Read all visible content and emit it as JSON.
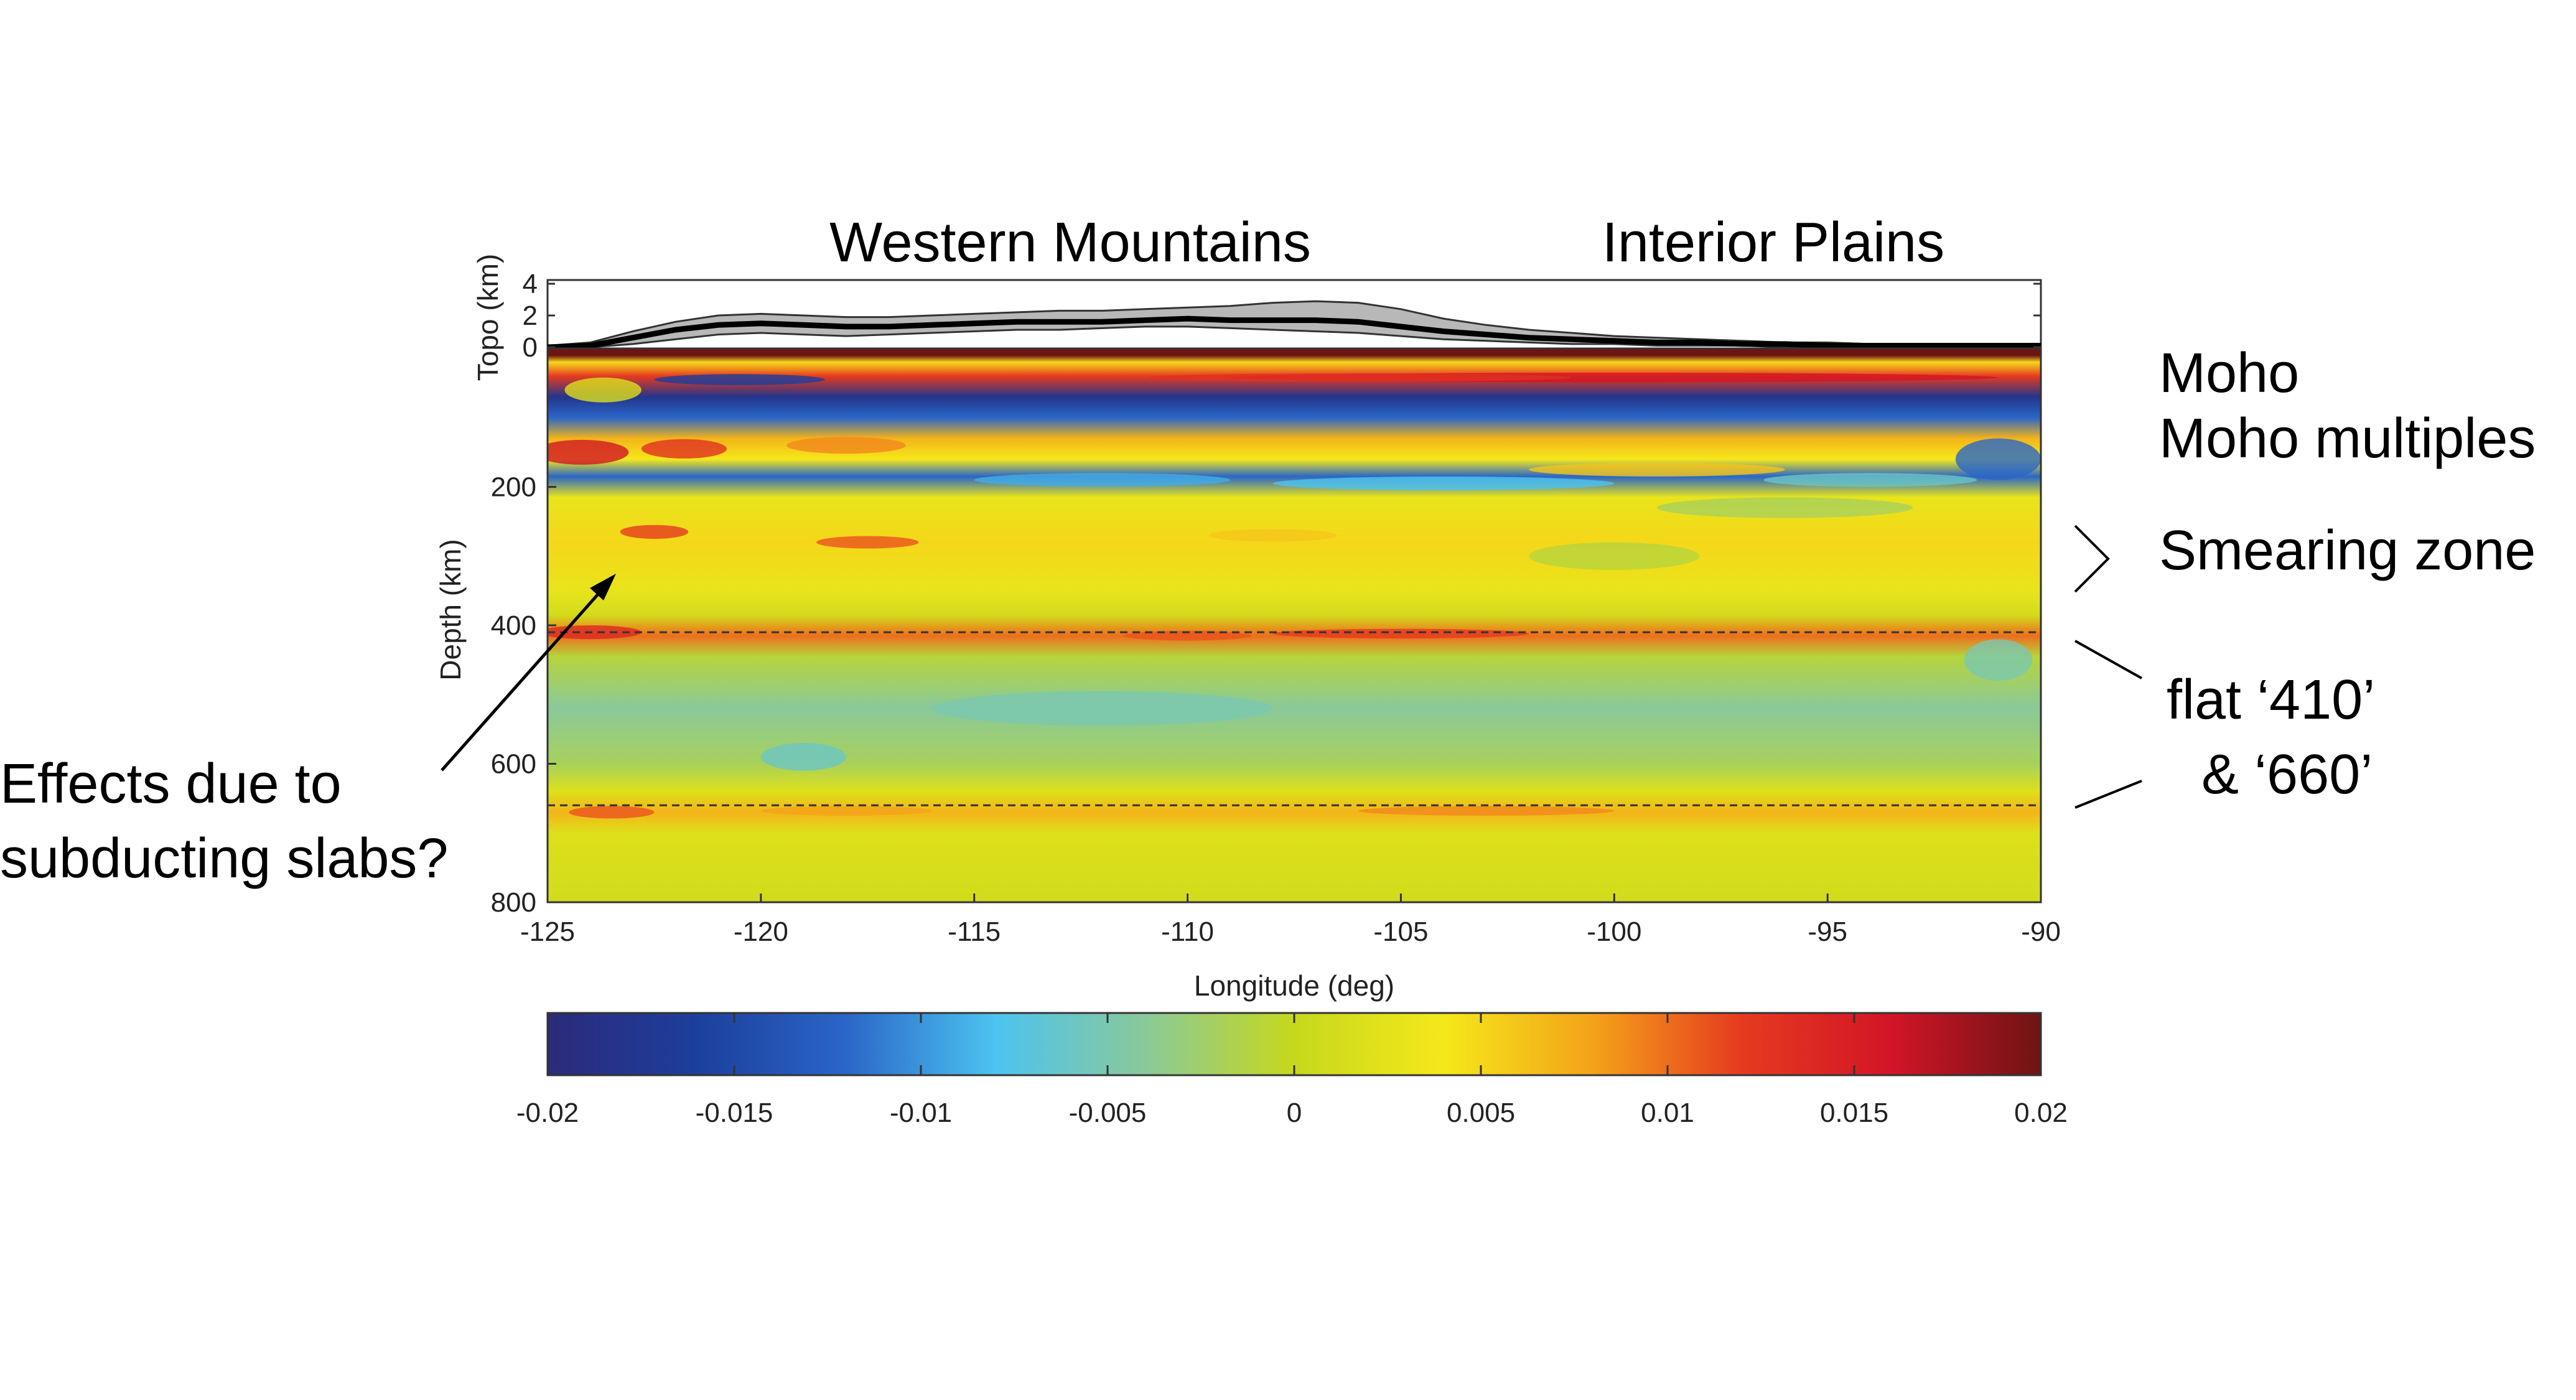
{
  "chart_data": {
    "type": "heatmap",
    "region_labels": [
      "Western Mountains",
      "Interior Plains"
    ],
    "topo_panel": {
      "ylabel": "Topo (km)",
      "yticks": [
        0,
        2,
        4
      ],
      "ylim": [
        0,
        4
      ],
      "mean_profile": [
        [
          -125,
          0.0
        ],
        [
          -124,
          0.1
        ],
        [
          -123,
          0.6
        ],
        [
          -122,
          1.1
        ],
        [
          -121,
          1.4
        ],
        [
          -120,
          1.5
        ],
        [
          -119,
          1.4
        ],
        [
          -118,
          1.3
        ],
        [
          -117,
          1.3
        ],
        [
          -116,
          1.4
        ],
        [
          -115,
          1.5
        ],
        [
          -114,
          1.6
        ],
        [
          -113,
          1.6
        ],
        [
          -112,
          1.6
        ],
        [
          -111,
          1.7
        ],
        [
          -110,
          1.8
        ],
        [
          -109,
          1.7
        ],
        [
          -108,
          1.7
        ],
        [
          -107,
          1.7
        ],
        [
          -106,
          1.6
        ],
        [
          -105,
          1.3
        ],
        [
          -104,
          1.0
        ],
        [
          -103,
          0.8
        ],
        [
          -102,
          0.6
        ],
        [
          -101,
          0.5
        ],
        [
          -100,
          0.4
        ],
        [
          -99,
          0.3
        ],
        [
          -98,
          0.3
        ],
        [
          -97,
          0.2
        ],
        [
          -96,
          0.2
        ],
        [
          -95,
          0.1
        ],
        [
          -94,
          0.1
        ],
        [
          -93,
          0.1
        ],
        [
          -92,
          0.1
        ],
        [
          -91,
          0.1
        ],
        [
          -90,
          0.1
        ]
      ],
      "envelope_max": [
        [
          -125,
          0.1
        ],
        [
          -124,
          0.3
        ],
        [
          -123,
          1.0
        ],
        [
          -122,
          1.6
        ],
        [
          -121,
          2.0
        ],
        [
          -120,
          2.1
        ],
        [
          -119,
          2.0
        ],
        [
          -118,
          1.9
        ],
        [
          -117,
          1.9
        ],
        [
          -116,
          2.0
        ],
        [
          -115,
          2.1
        ],
        [
          -114,
          2.2
        ],
        [
          -113,
          2.3
        ],
        [
          -112,
          2.3
        ],
        [
          -111,
          2.4
        ],
        [
          -110,
          2.5
        ],
        [
          -109,
          2.6
        ],
        [
          -108,
          2.8
        ],
        [
          -107,
          2.9
        ],
        [
          -106,
          2.8
        ],
        [
          -105,
          2.4
        ],
        [
          -104,
          1.8
        ],
        [
          -103,
          1.4
        ],
        [
          -102,
          1.1
        ],
        [
          -101,
          0.9
        ],
        [
          -100,
          0.7
        ],
        [
          -99,
          0.6
        ],
        [
          -98,
          0.5
        ],
        [
          -97,
          0.4
        ],
        [
          -96,
          0.3
        ],
        [
          -95,
          0.3
        ],
        [
          -94,
          0.2
        ],
        [
          -93,
          0.2
        ],
        [
          -92,
          0.2
        ],
        [
          -91,
          0.2
        ],
        [
          -90,
          0.2
        ]
      ],
      "envelope_min": [
        [
          -125,
          0.0
        ],
        [
          -124,
          0.0
        ],
        [
          -123,
          0.2
        ],
        [
          -122,
          0.5
        ],
        [
          -121,
          0.8
        ],
        [
          -120,
          0.9
        ],
        [
          -119,
          0.8
        ],
        [
          -118,
          0.7
        ],
        [
          -117,
          0.8
        ],
        [
          -116,
          0.9
        ],
        [
          -115,
          1.0
        ],
        [
          -114,
          1.1
        ],
        [
          -113,
          1.1
        ],
        [
          -112,
          1.2
        ],
        [
          -111,
          1.3
        ],
        [
          -110,
          1.3
        ],
        [
          -109,
          1.2
        ],
        [
          -108,
          1.1
        ],
        [
          -107,
          1.0
        ],
        [
          -106,
          0.9
        ],
        [
          -105,
          0.7
        ],
        [
          -104,
          0.5
        ],
        [
          -103,
          0.4
        ],
        [
          -102,
          0.3
        ],
        [
          -101,
          0.2
        ],
        [
          -100,
          0.2
        ],
        [
          -99,
          0.1
        ],
        [
          -98,
          0.1
        ],
        [
          -97,
          0.1
        ],
        [
          -96,
          0.0
        ],
        [
          -95,
          0.0
        ],
        [
          -94,
          0.0
        ],
        [
          -93,
          0.0
        ],
        [
          -92,
          0.0
        ],
        [
          -91,
          0.0
        ],
        [
          -90,
          0.0
        ]
      ]
    },
    "main_panel": {
      "xlabel": "Longitude (deg)",
      "ylabel": "Depth (km)",
      "xlim": [
        -125,
        -90
      ],
      "ylim": [
        0,
        800
      ],
      "xticks": [
        -125,
        -120,
        -115,
        -110,
        -105,
        -100,
        -95,
        -90
      ],
      "yticks": [
        200,
        400,
        600,
        800
      ],
      "reference_lines_depth_km": [
        410,
        660
      ],
      "depth_structure": [
        {
          "depth": 0,
          "value": 0.02
        },
        {
          "depth": 10,
          "value": 0.02
        },
        {
          "depth": 20,
          "value": 0.005
        },
        {
          "depth": 40,
          "value": 0.012
        },
        {
          "depth": 70,
          "value": -0.018
        },
        {
          "depth": 100,
          "value": -0.012
        },
        {
          "depth": 130,
          "value": 0.007
        },
        {
          "depth": 160,
          "value": 0.004
        },
        {
          "depth": 185,
          "value": -0.012
        },
        {
          "depth": 215,
          "value": 0.003
        },
        {
          "depth": 280,
          "value": 0.005
        },
        {
          "depth": 350,
          "value": 0.003
        },
        {
          "depth": 385,
          "value": 0.001
        },
        {
          "depth": 415,
          "value": 0.01
        },
        {
          "depth": 445,
          "value": -0.001
        },
        {
          "depth": 520,
          "value": -0.004
        },
        {
          "depth": 600,
          "value": -0.002
        },
        {
          "depth": 640,
          "value": 0.002
        },
        {
          "depth": 670,
          "value": 0.007
        },
        {
          "depth": 700,
          "value": 0.002
        },
        {
          "depth": 800,
          "value": 0.001
        }
      ]
    },
    "colorbar": {
      "range": [
        -0.02,
        0.02
      ],
      "ticks": [
        "-0.02",
        "-0.015",
        "-0.01",
        "-0.005",
        "0",
        "0.005",
        "0.01",
        "0.015",
        "0.02"
      ],
      "colors": [
        "#2c2a7a",
        "#1c3f9c",
        "#2a66c8",
        "#4cc3f0",
        "#8ac99a",
        "#c6d81c",
        "#f5e81a",
        "#f4a219",
        "#e63a20",
        "#d21526",
        "#6e1414"
      ]
    },
    "annotations": {
      "moho": "Moho",
      "moho_multiples": "Moho multiples",
      "smearing_zone": "Smearing zone",
      "flat_410": "flat ‘410’",
      "and_660": "& ‘660’",
      "effects_line1": "Effects due to",
      "effects_line2": "subducting slabs?"
    }
  }
}
